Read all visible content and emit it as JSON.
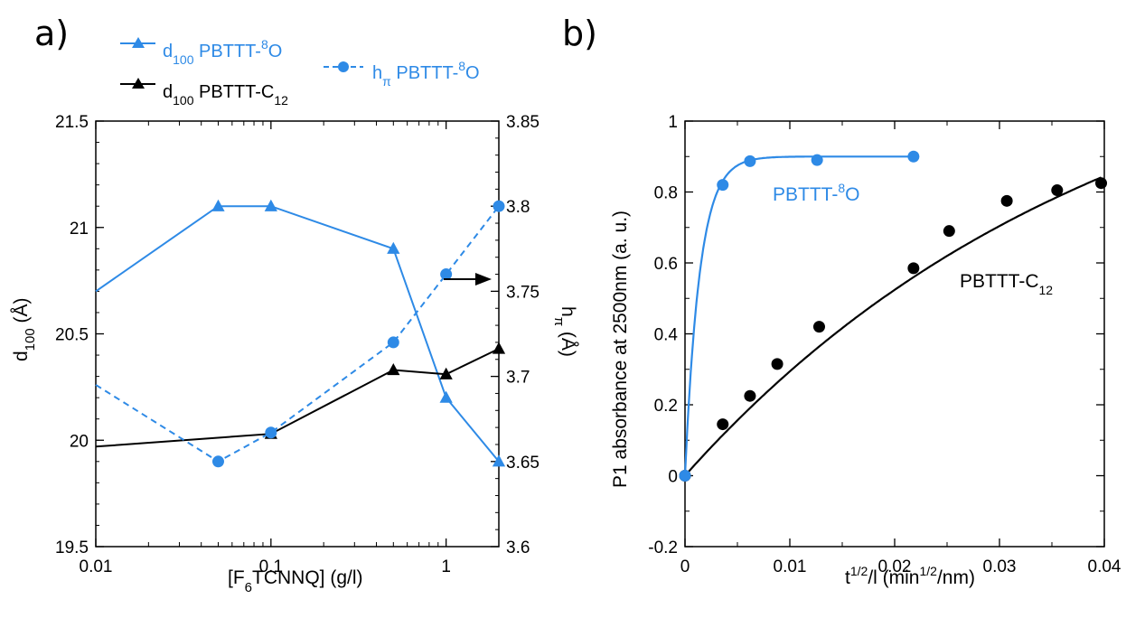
{
  "colors": {
    "blue": "#2E8AE6",
    "black": "#000000"
  },
  "chart_data": [
    {
      "panel": "a)",
      "type": "line",
      "x_scale": "log",
      "xlim": [
        0.01,
        2
      ],
      "ylim": [
        19.5,
        21.5
      ],
      "y2lim": [
        3.6,
        3.85
      ],
      "x_ticks": [
        "0.01",
        "0.1",
        "1"
      ],
      "y_ticks": [
        "19.5",
        "20",
        "20.5",
        "21",
        "21.5"
      ],
      "y2_ticks": [
        "3.6",
        "3.65",
        "3.7",
        "3.75",
        "3.8",
        "3.85"
      ],
      "xlabel": {
        "pre": "[F",
        "sub": "6",
        "post": "TCNNQ] (g/l)"
      },
      "ylabel": {
        "pre": "d",
        "sub": "100",
        "post": " (Å)"
      },
      "y2label": {
        "pre": "h",
        "sub": "π",
        "post": " (Å)"
      },
      "series": [
        {
          "axis": "left",
          "color": "#2E8AE6",
          "marker": "triangle",
          "dashed": false,
          "legend": {
            "pre": "d",
            "sub": "100",
            "mid": " PBTTT-",
            "sup": "8",
            "post": "O"
          },
          "x": [
            0.01,
            0.05,
            0.1,
            0.5,
            1,
            2
          ],
          "y": [
            20.7,
            21.1,
            21.1,
            20.9,
            20.2,
            19.9
          ]
        },
        {
          "axis": "left",
          "color": "#000000",
          "marker": "triangle",
          "dashed": false,
          "legend": {
            "pre": "d",
            "sub": "100",
            "mid": " PBTTT-C",
            "sub2": "12"
          },
          "x": [
            0.01,
            0.1,
            0.5,
            1,
            2
          ],
          "y": [
            19.97,
            20.03,
            20.33,
            20.31,
            20.43
          ]
        },
        {
          "axis": "right",
          "color": "#2E8AE6",
          "marker": "circle",
          "dashed": true,
          "legend": {
            "pre": "h",
            "sub": "π",
            "mid": " PBTTT-",
            "sup": "8",
            "post": "O"
          },
          "x": [
            0.01,
            0.05,
            0.1,
            0.5,
            1,
            2
          ],
          "y": [
            3.695,
            3.65,
            3.667,
            3.72,
            3.76,
            3.8
          ]
        }
      ]
    },
    {
      "panel": "b)",
      "type": "scatter",
      "xlim": [
        0,
        0.04
      ],
      "ylim": [
        -0.2,
        1
      ],
      "x_ticks": [
        "0",
        "0.01",
        "0.02",
        "0.03",
        "0.04"
      ],
      "y_ticks": [
        "-0.2",
        "0",
        "0.2",
        "0.4",
        "0.6",
        "0.8",
        "1"
      ],
      "xlabel": {
        "pre": "t",
        "sup": "1/2",
        "mid": "/l (min",
        "sup2": "1/2",
        "post": "/nm)"
      },
      "ylabel": "P1 absorbance at 2500nm (a. u.)",
      "series": [
        {
          "color": "#2E8AE6",
          "label": {
            "pre": "PBTTT-",
            "sup": "8",
            "post": "O"
          },
          "x": [
            0,
            0.0036,
            0.0062,
            0.0126,
            0.0218
          ],
          "y": [
            0,
            0.82,
            0.887,
            0.89,
            0.9
          ],
          "fit": {
            "model": "A*(1-exp(-x/tau))",
            "A": 0.9,
            "tau": 0.0014,
            "x_range": [
              0,
              0.0218
            ]
          }
        },
        {
          "color": "#000000",
          "label": {
            "pre": "PBTTT-C",
            "sub": "12"
          },
          "x": [
            0,
            0.0036,
            0.0062,
            0.0088,
            0.0128,
            0.0218,
            0.0252,
            0.0307,
            0.0355,
            0.0397
          ],
          "y": [
            0,
            0.145,
            0.225,
            0.315,
            0.42,
            0.585,
            0.69,
            0.775,
            0.805,
            0.825
          ],
          "fit": {
            "model": "A*(1-exp(-x/tau))",
            "A": 1.35,
            "tau": 0.0407,
            "x_range": [
              0,
              0.0397
            ]
          }
        }
      ]
    }
  ]
}
